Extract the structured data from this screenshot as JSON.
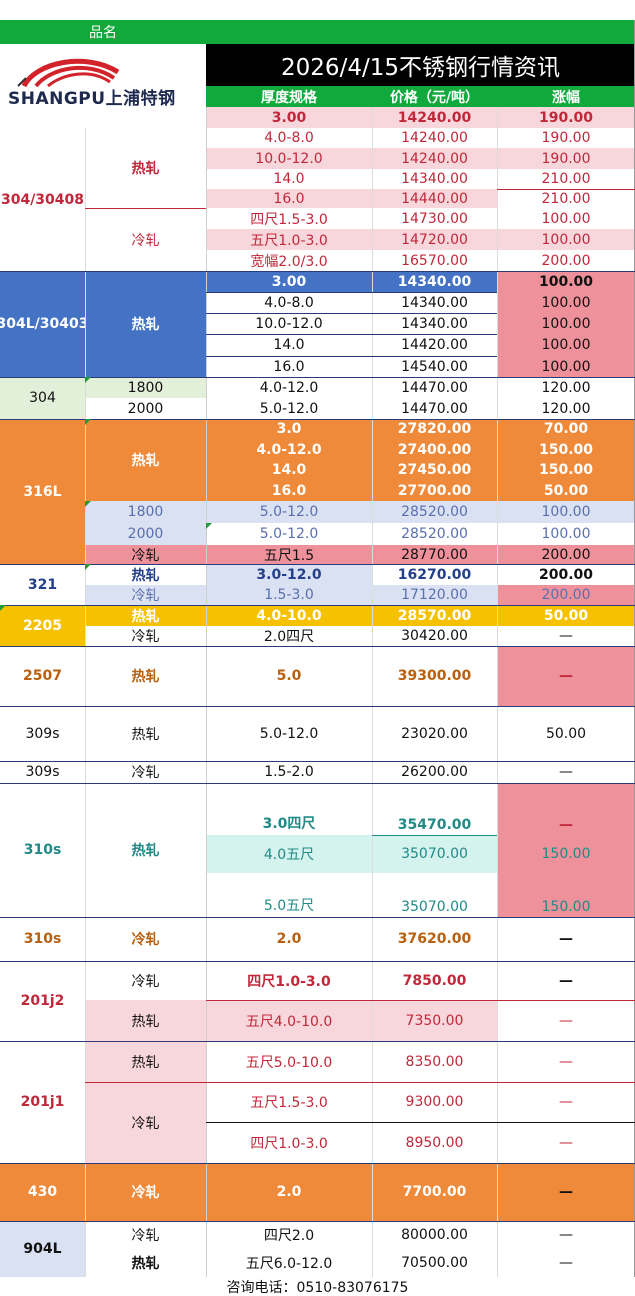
{
  "header": {
    "pinming": "品名",
    "title": "2026/4/15不锈钢行情资讯",
    "col_spec": "厚度规格",
    "col_price": "价格（元/吨）",
    "col_change": "涨幅"
  },
  "logo": {
    "text": "SHANGPU上浦特钢"
  },
  "grades": {
    "g304_30408": "304/30408",
    "g304l": "304L/30403",
    "g304": "304",
    "g316l": "316L",
    "g321": "321",
    "g2205": "2205",
    "g2507": "2507",
    "g309s_a": "309s",
    "g309s_b": "309s",
    "g310s_a": "310s",
    "g310s_b": "310s",
    "g201j2": "201j2",
    "g201j1": "201j1",
    "g430": "430",
    "g904l": "904L"
  },
  "processes": {
    "p304_hot": "热轧",
    "p304_cold": "冷轧",
    "p304l_hot": "热轧",
    "p304_1800": "1800",
    "p304_2000": "2000",
    "p316_hot": "热轧",
    "p316_1800": "1800",
    "p316_2000": "2000",
    "p316_cold": "冷轧",
    "p321_hot": "热轧",
    "p321_cold": "冷轧",
    "p2205_hot": "热轧",
    "p2205_cold": "冷轧",
    "p2507_hot": "热轧",
    "p309_hot": "热轧",
    "p309_cold": "冷轧",
    "p310_hot": "热轧",
    "p310_cold": "冷轧",
    "p201j2_cold": "冷轧",
    "p201j2_hot": "热轧",
    "p201j1_hot": "热轧",
    "p201j1_cold": "冷轧",
    "p430_cold": "冷轧",
    "p904_cold": "冷轧",
    "p904_hot": "热轧"
  },
  "rows": [
    {
      "spec": "3.00",
      "price": "14240.00",
      "change": "190.00"
    },
    {
      "spec": "4.0-8.0",
      "price": "14240.00",
      "change": "190.00"
    },
    {
      "spec": "10.0-12.0",
      "price": "14240.00",
      "change": "190.00"
    },
    {
      "spec": "14.0",
      "price": "14340.00",
      "change": "210.00"
    },
    {
      "spec": "16.0",
      "price": "14440.00",
      "change": "210.00"
    },
    {
      "spec": "四尺1.5-3.0",
      "price": "14730.00",
      "change": "100.00"
    },
    {
      "spec": "五尺1.0-3.0",
      "price": "14720.00",
      "change": "100.00"
    },
    {
      "spec": "宽幅2.0/3.0",
      "price": "16570.00",
      "change": "200.00"
    },
    {
      "spec": "3.00",
      "price": "14340.00",
      "change": "100.00"
    },
    {
      "spec": "4.0-8.0",
      "price": "14340.00",
      "change": "100.00"
    },
    {
      "spec": "10.0-12.0",
      "price": "14340.00",
      "change": "100.00"
    },
    {
      "spec": "14.0",
      "price": "14420.00",
      "change": "100.00"
    },
    {
      "spec": "16.0",
      "price": "14540.00",
      "change": "100.00"
    },
    {
      "spec": "4.0-12.0",
      "price": "14470.00",
      "change": "120.00"
    },
    {
      "spec": "5.0-12.0",
      "price": "14470.00",
      "change": "120.00"
    },
    {
      "spec": "3.0",
      "price": "27820.00",
      "change": "70.00"
    },
    {
      "spec": "4.0-12.0",
      "price": "27400.00",
      "change": "150.00"
    },
    {
      "spec": "14.0",
      "price": "27450.00",
      "change": "150.00"
    },
    {
      "spec": "16.0",
      "price": "27700.00",
      "change": "50.00"
    },
    {
      "spec": "5.0-12.0",
      "price": "28520.00",
      "change": "100.00"
    },
    {
      "spec": "5.0-12.0",
      "price": "28520.00",
      "change": "100.00"
    },
    {
      "spec": "五尺1.5",
      "price": "28770.00",
      "change": "200.00"
    },
    {
      "spec": "3.0-12.0",
      "price": "16270.00",
      "change": "200.00"
    },
    {
      "spec": "1.5-3.0",
      "price": "17120.00",
      "change": "200.00"
    },
    {
      "spec": "4.0-10.0",
      "price": "28570.00",
      "change": "50.00"
    },
    {
      "spec": "2.0四尺",
      "price": "30420.00",
      "change": "—"
    },
    {
      "spec": "5.0",
      "price": "39300.00",
      "change": "—"
    },
    {
      "spec": "5.0-12.0",
      "price": "23020.00",
      "change": "50.00"
    },
    {
      "spec": "1.5-2.0",
      "price": "26200.00",
      "change": "—"
    },
    {
      "spec": "3.0四尺",
      "price": "35470.00",
      "change": "—"
    },
    {
      "spec": "4.0五尺",
      "price": "35070.00",
      "change": "150.00"
    },
    {
      "spec": "5.0五尺",
      "price": "35070.00",
      "change": "150.00"
    },
    {
      "spec": "2.0",
      "price": "37620.00",
      "change": "—"
    },
    {
      "spec": "四尺1.0-3.0",
      "price": "7850.00",
      "change": "—"
    },
    {
      "spec": "五尺4.0-10.0",
      "price": "7350.00",
      "change": "—"
    },
    {
      "spec": "五尺5.0-10.0",
      "price": "8350.00",
      "change": "—"
    },
    {
      "spec": "五尺1.5-3.0",
      "price": "9300.00",
      "change": "—"
    },
    {
      "spec": "四尺1.0-3.0",
      "price": "8950.00",
      "change": "—"
    },
    {
      "spec": "2.0",
      "price": "7700.00",
      "change": "—"
    },
    {
      "spec": "四尺2.0",
      "price": "80000.00",
      "change": "—"
    },
    {
      "spec": "五尺6.0-12.0",
      "price": "70500.00",
      "change": "—"
    }
  ],
  "footer": {
    "contact": "咨询电话：0510-83076175"
  },
  "colors": {
    "header_green": "#11a83c",
    "title_black": "#000000",
    "pink": "#f8d7dc",
    "rose": "#ef919b",
    "blue": "#4472c4",
    "orange": "#ef8a3a",
    "light_green": "#e2efd9",
    "lavender": "#d9e1f2",
    "yellow": "#f6c200",
    "mint": "#d5f3ee",
    "red_text": "#c0283a",
    "teal_text": "#1f8a86",
    "brown_text": "#b8600e",
    "navy_text": "#23408c"
  }
}
